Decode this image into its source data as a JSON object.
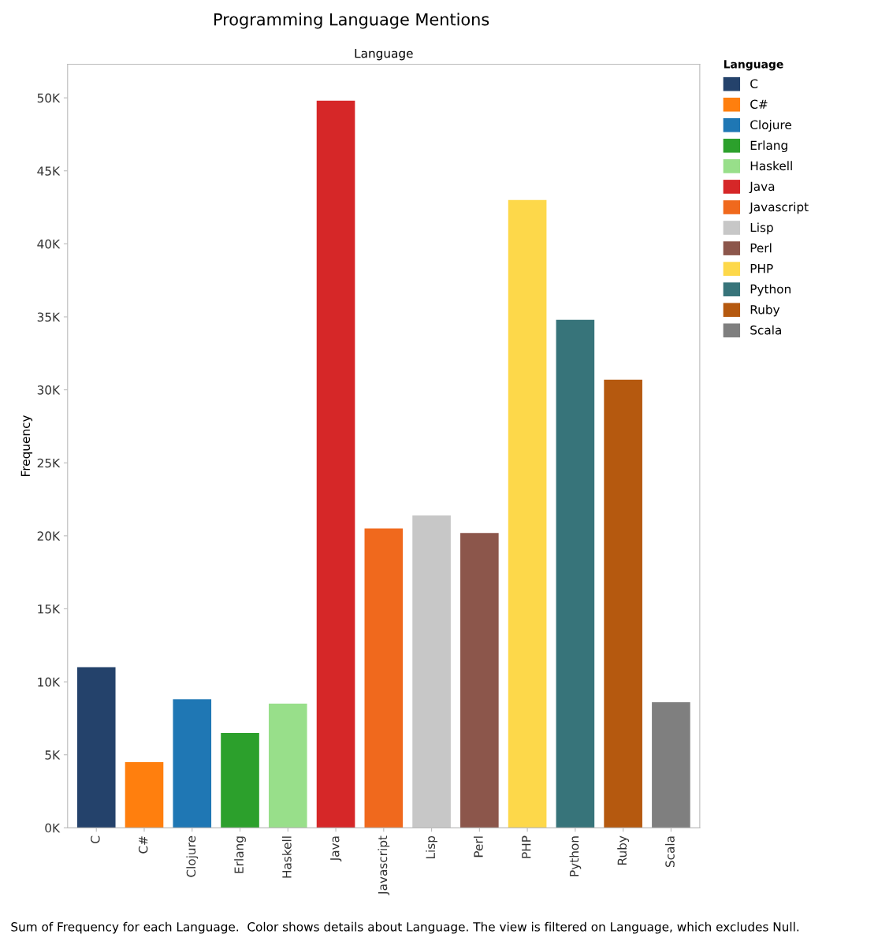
{
  "chart_data": {
    "type": "bar",
    "title": "Programming Language Mentions",
    "subtitle": "Language",
    "ylabel": "Frequency",
    "legend_title": "Language",
    "categories": [
      "C",
      "C#",
      "Clojure",
      "Erlang",
      "Haskell",
      "Java",
      "Javascript",
      "Lisp",
      "Perl",
      "PHP",
      "Python",
      "Ruby",
      "Scala"
    ],
    "series": [
      {
        "name": "C",
        "color": "#24426b",
        "values": [
          11.0,
          null,
          null,
          null,
          null,
          null,
          null,
          null,
          null,
          null,
          null,
          null,
          null
        ]
      },
      {
        "name": "C#",
        "color": "#ff7f0e",
        "values": [
          null,
          4.5,
          null,
          null,
          null,
          null,
          null,
          null,
          null,
          null,
          null,
          null,
          null
        ]
      },
      {
        "name": "Clojure",
        "color": "#1f77b4",
        "values": [
          null,
          null,
          8.8,
          null,
          null,
          null,
          null,
          null,
          null,
          null,
          null,
          null,
          null
        ]
      },
      {
        "name": "Erlang",
        "color": "#2ca02c",
        "values": [
          null,
          null,
          null,
          6.5,
          null,
          null,
          null,
          null,
          null,
          null,
          null,
          null,
          null
        ]
      },
      {
        "name": "Haskell",
        "color": "#98df8a",
        "values": [
          null,
          null,
          null,
          null,
          8.5,
          null,
          null,
          null,
          null,
          null,
          null,
          null,
          null
        ]
      },
      {
        "name": "Java",
        "color": "#d62728",
        "values": [
          null,
          null,
          null,
          null,
          null,
          49.8,
          null,
          null,
          null,
          null,
          null,
          null,
          null
        ]
      },
      {
        "name": "Javascript",
        "color": "#f0691d",
        "values": [
          null,
          null,
          null,
          null,
          null,
          null,
          20.5,
          null,
          null,
          null,
          null,
          null,
          null
        ]
      },
      {
        "name": "Lisp",
        "color": "#c7c7c7",
        "values": [
          null,
          null,
          null,
          null,
          null,
          null,
          null,
          21.4,
          null,
          null,
          null,
          null,
          null
        ]
      },
      {
        "name": "Perl",
        "color": "#8c564b",
        "values": [
          null,
          null,
          null,
          null,
          null,
          null,
          null,
          null,
          20.2,
          null,
          null,
          null,
          null
        ]
      },
      {
        "name": "PHP",
        "color": "#fdd84a",
        "values": [
          null,
          null,
          null,
          null,
          null,
          null,
          null,
          null,
          null,
          43.0,
          null,
          null,
          null
        ]
      },
      {
        "name": "Python",
        "color": "#37747a",
        "values": [
          null,
          null,
          null,
          null,
          null,
          null,
          null,
          null,
          null,
          null,
          34.8,
          null,
          null
        ]
      },
      {
        "name": "Ruby",
        "color": "#b5590f",
        "values": [
          null,
          null,
          null,
          null,
          null,
          null,
          null,
          null,
          null,
          null,
          null,
          30.7,
          null
        ]
      },
      {
        "name": "Scala",
        "color": "#7f7f7f",
        "values": [
          null,
          null,
          null,
          null,
          null,
          null,
          null,
          null,
          null,
          null,
          null,
          null,
          8.6
        ]
      }
    ],
    "stacked": true,
    "ylim": [
      0,
      52.3
    ],
    "yticks": [
      {
        "value": 0,
        "label": "0K"
      },
      {
        "value": 5,
        "label": "5K"
      },
      {
        "value": 10,
        "label": "10K"
      },
      {
        "value": 15,
        "label": "15K"
      },
      {
        "value": 20,
        "label": "20K"
      },
      {
        "value": 25,
        "label": "25K"
      },
      {
        "value": 30,
        "label": "30K"
      },
      {
        "value": 35,
        "label": "35K"
      },
      {
        "value": 40,
        "label": "40K"
      },
      {
        "value": 45,
        "label": "45K"
      },
      {
        "value": 50,
        "label": "50K"
      }
    ],
    "legend": "right",
    "annotations": [
      "Sum of Frequency for each Language.  Color shows details about Language. The view is filtered on Language, which excludes Null."
    ]
  }
}
